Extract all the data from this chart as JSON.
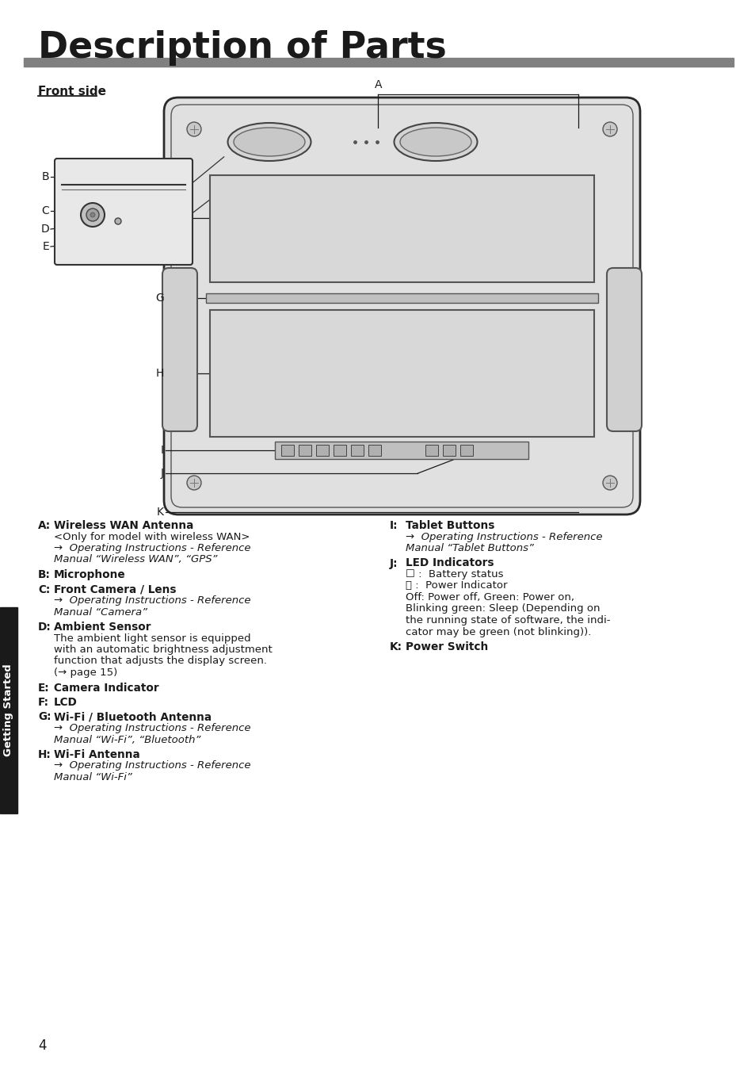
{
  "title": "Description of Parts",
  "subtitle": "Front side",
  "bg_color": "#ffffff",
  "title_color": "#1a1a1a",
  "page_number": "4",
  "sidebar_text": "Getting Started",
  "left_sections": [
    {
      "label": "A:",
      "bold": "Wireless WAN Antenna",
      "lines": [
        {
          "text": "<Only for model with wireless WAN>",
          "italic": false
        },
        {
          "text": "→  Operating Instructions - Reference",
          "italic": true
        },
        {
          "text": "Manual “Wireless WAN”, “GPS”",
          "italic": true
        }
      ]
    },
    {
      "label": "B:",
      "bold": "Microphone",
      "lines": []
    },
    {
      "label": "C:",
      "bold": "Front Camera / Lens",
      "lines": [
        {
          "text": "→  Operating Instructions - Reference",
          "italic": true
        },
        {
          "text": "Manual “Camera”",
          "italic": true
        }
      ]
    },
    {
      "label": "D:",
      "bold": "Ambient Sensor",
      "lines": [
        {
          "text": "The ambient light sensor is equipped",
          "italic": false
        },
        {
          "text": "with an automatic brightness adjustment",
          "italic": false
        },
        {
          "text": "function that adjusts the display screen.",
          "italic": false
        },
        {
          "text": "(→ page 15)",
          "italic": false
        }
      ]
    },
    {
      "label": "E:",
      "bold": "Camera Indicator",
      "lines": []
    },
    {
      "label": "F:",
      "bold": "LCD",
      "lines": []
    },
    {
      "label": "G:",
      "bold": "Wi-Fi / Bluetooth Antenna",
      "lines": [
        {
          "text": "→  Operating Instructions - Reference",
          "italic": true
        },
        {
          "text": "Manual “Wi-Fi”, “Bluetooth”",
          "italic": true
        }
      ]
    },
    {
      "label": "H:",
      "bold": "Wi-Fi Antenna",
      "lines": [
        {
          "text": "→  Operating Instructions - Reference",
          "italic": true
        },
        {
          "text": "Manual “Wi-Fi”",
          "italic": true
        }
      ]
    }
  ],
  "right_sections": [
    {
      "label": "I:",
      "bold": "Tablet Buttons",
      "lines": [
        {
          "text": "→  Operating Instructions - Reference",
          "italic": true
        },
        {
          "text": "Manual “Tablet Buttons”",
          "italic": true
        }
      ]
    },
    {
      "label": "J:",
      "bold": "LED Indicators",
      "lines": [
        {
          "text": "☐ :  Battery status",
          "italic": false
        },
        {
          "text": "ⓘ :  Power Indicator",
          "italic": false
        },
        {
          "text": "Off: Power off, Green: Power on,",
          "italic": false
        },
        {
          "text": "Blinking green: Sleep (Depending on",
          "italic": false
        },
        {
          "text": "the running state of software, the indi-",
          "italic": false
        },
        {
          "text": "cator may be green (not blinking)).",
          "italic": false
        }
      ]
    },
    {
      "label": "K:",
      "bold": "Power Switch",
      "lines": []
    }
  ]
}
